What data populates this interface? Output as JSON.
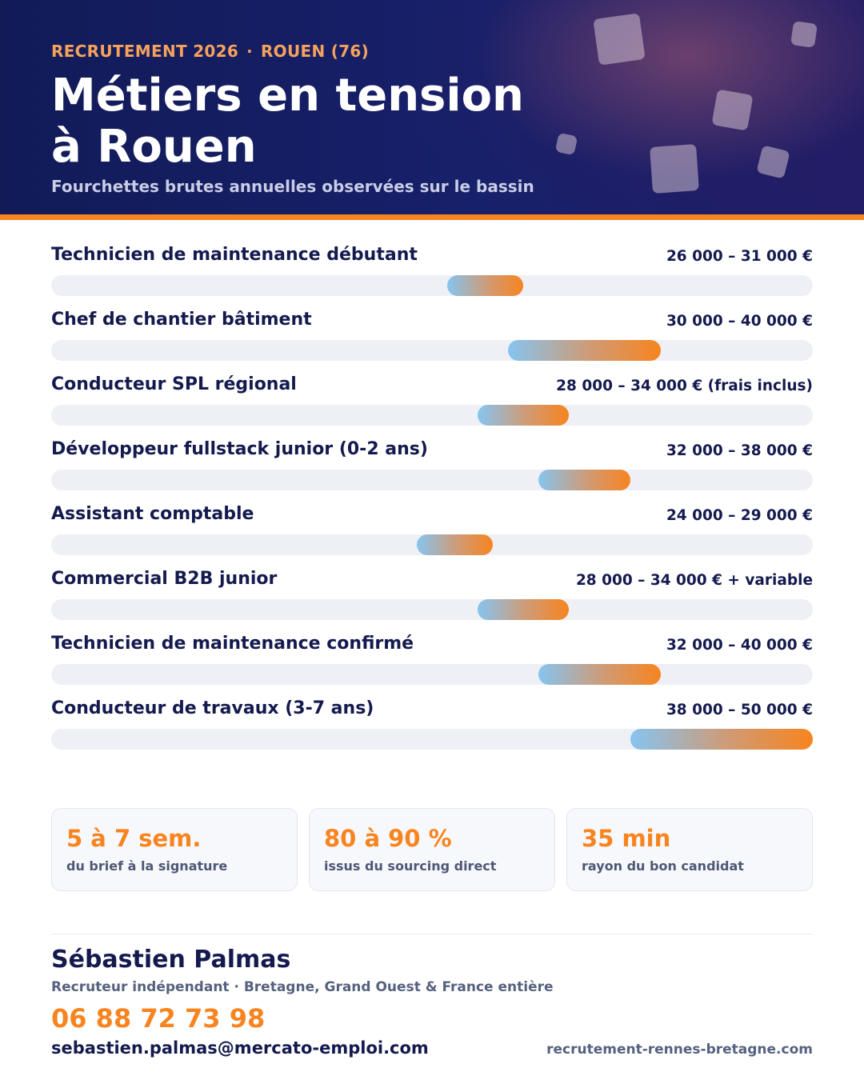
{
  "header": {
    "kicker_left": "RECRUTEMENT 2026",
    "kicker_sep": "·",
    "kicker_right": "ROUEN (76)",
    "title_line1": "Métiers en tension",
    "title_line2": "à Rouen",
    "subtitle": "Fourchettes brutes annuelles observées sur le bassin"
  },
  "colors": {
    "navy": "#141a4e",
    "orange": "#f7841f",
    "bar_start": "#86c4f0",
    "track": "#eef0f6"
  },
  "chart_data": {
    "type": "bar",
    "orientation": "horizontal-range",
    "xlim": [
      0,
      50000
    ],
    "series": [
      {
        "label": "Technicien de maintenance débutant",
        "min": 26000,
        "max": 31000,
        "display": "26 000 – 31 000 €"
      },
      {
        "label": "Chef de chantier bâtiment",
        "min": 30000,
        "max": 40000,
        "display": "30 000 – 40 000 €"
      },
      {
        "label": "Conducteur SPL régional",
        "min": 28000,
        "max": 34000,
        "display": "28 000 – 34 000 € (frais inclus)"
      },
      {
        "label": "Développeur fullstack junior (0-2 ans)",
        "min": 32000,
        "max": 38000,
        "display": "32 000 – 38 000 €"
      },
      {
        "label": "Assistant comptable",
        "min": 24000,
        "max": 29000,
        "display": "24 000 – 29 000 €"
      },
      {
        "label": "Commercial B2B junior",
        "min": 28000,
        "max": 34000,
        "display": "28 000 – 34 000 € + variable"
      },
      {
        "label": "Technicien de maintenance confirmé",
        "min": 32000,
        "max": 40000,
        "display": "32 000 – 40 000 €"
      },
      {
        "label": "Conducteur de travaux (3-7 ans)",
        "min": 38000,
        "max": 50000,
        "display": "38 000 – 50 000 €"
      }
    ]
  },
  "stats": [
    {
      "value": "5 à 7 sem.",
      "label": "du brief à la signature"
    },
    {
      "value": "80 à 90 %",
      "label": "issus du sourcing direct"
    },
    {
      "value": "35 min",
      "label": "rayon du bon candidat"
    }
  ],
  "contact": {
    "name": "Sébastien Palmas",
    "role": "Recruteur indépendant · Bretagne, Grand Ouest & France entière",
    "phone": "06 88 72 73 98",
    "email": "sebastien.palmas@mercato-emploi.com",
    "website": "recrutement-rennes-bretagne.com"
  }
}
